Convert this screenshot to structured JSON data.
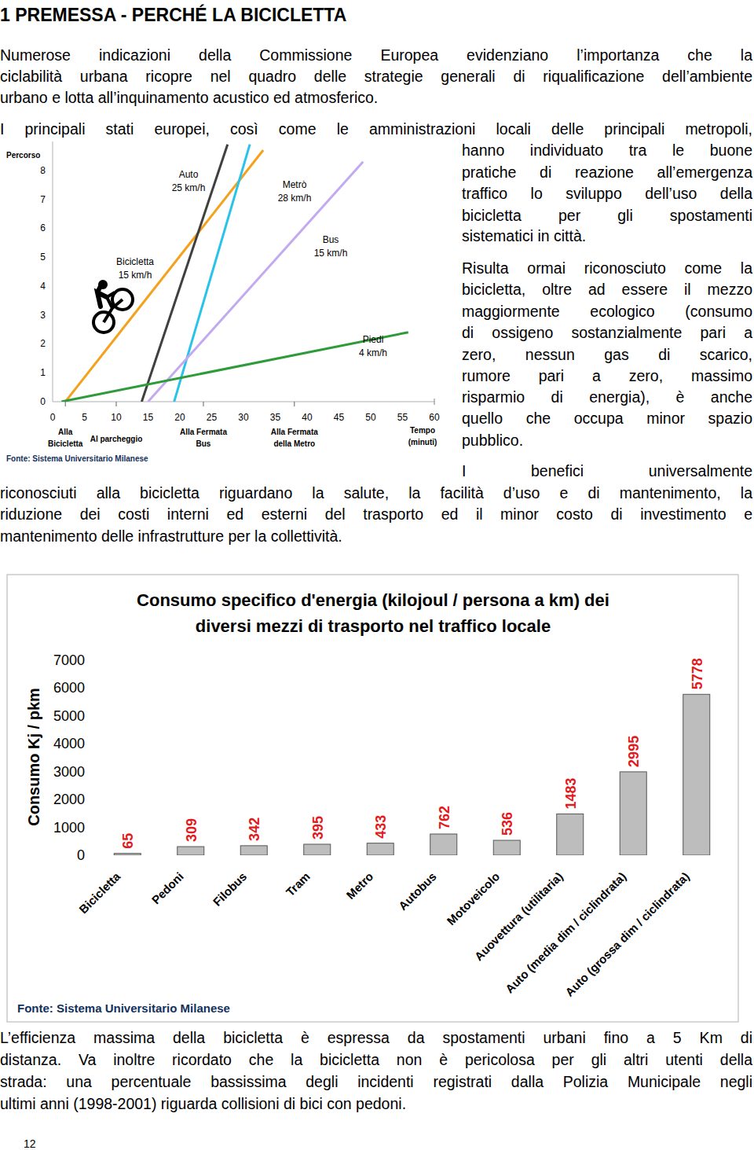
{
  "page": {
    "heading": "1 PREMESSA - PERCHÉ LA BICICLETTA",
    "paragraphs": [
      {
        "lines": [
          "Numerose indicazioni della Commissione Europea evidenziano l’importanza che la",
          "ciclabilità urbana ricopre nel quadro delle strategie generali di riqualificazione dell’ambiente",
          "urbano e lotta all’inquinamento acustico ed atmosferico."
        ]
      },
      {
        "lines": [
          "I principali stati europei, così come le amministrazioni locali delle principali metropoli,",
          "hanno individuato tra le buone",
          "pratiche di reazione all’emergenza",
          "traffico lo sviluppo dell’uso della",
          "bicicletta per gli spostamenti",
          "sistematici in città."
        ]
      },
      {
        "lines": [
          "Risulta ormai riconosciuto come la",
          "bicicletta, oltre ad essere il mezzo",
          "maggiormente ecologico (consumo",
          "di ossigeno sostanzialmente pari a",
          "zero, nessun gas di scarico,",
          "rumore pari a zero, massimo",
          "risparmio di energia), è anche",
          "quello che occupa minor spazio",
          "pubblico."
        ]
      },
      {
        "lines": [
          "I benefici universalmente",
          "riconosciuti alla bicicletta riguardano la salute, la facilità d’uso e di mantenimento, la",
          "riduzione dei costi interni ed esterni del trasporto ed il minor costo di investimento e",
          "mantenimento delle infrastrutture per la collettività."
        ]
      },
      {
        "lines": [
          "L’efficienza massima della bicicletta è espressa da spostamenti urbani fino a 5 Km di",
          "distanza. Va inoltre ricordato che la bicicletta non è pericolosa per gli altri utenti della",
          "strada: una percentuale bassissima degli incidenti registrati dalla Polizia Municipale negli",
          "ultimi anni (1998-2001) riguarda collisioni di bici con pedoni."
        ]
      }
    ],
    "page_number": "12"
  },
  "chart_data": [
    {
      "type": "line",
      "ylabel": "Percorso",
      "xlabel": [
        "Tempo",
        "(minuti)"
      ],
      "source": "Fonte: Sistema Universitario Milanese",
      "xlim": [
        0,
        60
      ],
      "xticks": [
        0,
        5,
        10,
        15,
        20,
        25,
        30,
        35,
        40,
        45,
        50,
        55,
        60
      ],
      "ylim": [
        0,
        9
      ],
      "yticks": [
        0,
        1,
        2,
        3,
        4,
        5,
        6,
        7,
        8
      ],
      "grid": false,
      "series": [
        {
          "name": "Bicicletta",
          "speed": "15 km/h",
          "color": "#f4a11d",
          "x": [
            2,
            33.1
          ],
          "values": [
            0,
            8.7
          ]
        },
        {
          "name": "Auto",
          "speed": "25 km/h",
          "color": "#404040",
          "x": [
            14,
            27.5
          ],
          "values": [
            0,
            8.9
          ]
        },
        {
          "name": "Metrò",
          "speed": "28 km/h",
          "color": "#29c3ea",
          "x": [
            19.1,
            31
          ],
          "values": [
            0,
            8.9
          ]
        },
        {
          "name": "Bus",
          "speed": "15 km/h",
          "color": "#c3aaf0",
          "x": [
            15,
            48.8
          ],
          "values": [
            0,
            8.3
          ]
        },
        {
          "name": "Piedi",
          "speed": "4 km/h",
          "color": "#2e9b3a",
          "x": [
            1.4,
            55.9
          ],
          "values": [
            0,
            2.4
          ]
        }
      ],
      "annotations": [
        {
          "x": 2,
          "label": [
            "Alla",
            "Bicicletta"
          ]
        },
        {
          "x": 10,
          "label": [
            "Al parcheggio"
          ]
        },
        {
          "x": 23.7,
          "label": [
            "Alla Fermata",
            "Bus"
          ]
        },
        {
          "x": 38,
          "label": [
            "Alla Fermata",
            "della Metro"
          ]
        }
      ]
    },
    {
      "type": "bar",
      "title": [
        "Consumo specifico d'energia (kilojoul / persona a km) dei",
        "diversi mezzi di trasporto nel traffico locale"
      ],
      "ylabel": "Consumo Kj / pkm",
      "source": "Fonte: Sistema Universitario Milanese",
      "categories": [
        "Bicicletta",
        "Pedoni",
        "Filobus",
        "Tram",
        "Metro",
        "Autobus",
        "Motoveicolo",
        "Auovettura (utilitaria)",
        "Auto (media dim / ciclindrata)",
        "Auto (grossa dim / ciclindrata)"
      ],
      "values": [
        65,
        309,
        342,
        395,
        433,
        762,
        536,
        1483,
        2995,
        5778
      ],
      "color": "#bdbdbd",
      "ylim": [
        0,
        7000
      ],
      "yticks": [
        0,
        1000,
        2000,
        3000,
        4000,
        5000,
        6000,
        7000
      ],
      "grid": false,
      "data_labels": true
    }
  ]
}
